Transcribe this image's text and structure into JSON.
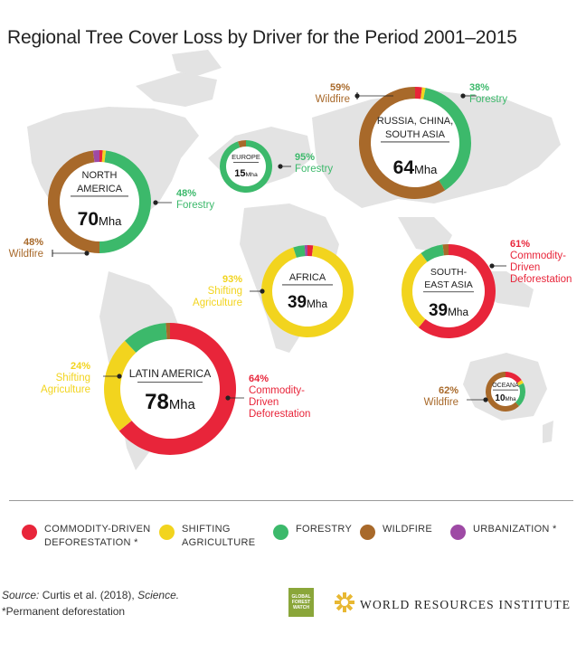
{
  "title": "Regional Tree Cover Loss by Driver for the Period 2001–2015",
  "colors": {
    "commodity": "#e8253a",
    "shifting": "#f2d41e",
    "forestry": "#3cb96b",
    "wildfire": "#a8692a",
    "urbanization": "#9e4aa5",
    "map": "#e3e3e3"
  },
  "chart_data": {
    "type": "donut",
    "drivers": [
      {
        "key": "commodity",
        "label": "COMMODITY-DRIVEN\nDEFORESTATION *"
      },
      {
        "key": "shifting",
        "label": "SHIFTING\nAGRICULTURE"
      },
      {
        "key": "forestry",
        "label": "FORESTRY"
      },
      {
        "key": "wildfire",
        "label": "WILDFIRE"
      },
      {
        "key": "urbanization",
        "label": "URBANIZATION *"
      }
    ],
    "regions": [
      {
        "name": "North America",
        "name_lines": [
          "NORTH",
          "AMERICA"
        ],
        "total": "70",
        "unit": "Mha",
        "slices": [
          {
            "driver": "commodity",
            "value": 1
          },
          {
            "driver": "shifting",
            "value": 1
          },
          {
            "driver": "forestry",
            "value": 48
          },
          {
            "driver": "wildfire",
            "value": 48
          },
          {
            "driver": "urbanization",
            "value": 2
          }
        ],
        "callouts": [
          {
            "pct": "48%",
            "lines": [
              "Forestry"
            ],
            "driver": "forestry"
          },
          {
            "pct": "48%",
            "lines": [
              "Wildfire"
            ],
            "driver": "wildfire"
          }
        ]
      },
      {
        "name": "Europe",
        "name_lines": [
          "EUROPE"
        ],
        "total": "15",
        "unit": "Mha",
        "slices": [
          {
            "driver": "forestry",
            "value": 95
          },
          {
            "driver": "wildfire",
            "value": 5
          }
        ],
        "callouts": [
          {
            "pct": "95%",
            "lines": [
              "Forestry"
            ],
            "driver": "forestry"
          }
        ]
      },
      {
        "name": "Russia, China, South Asia",
        "name_lines": [
          "RUSSIA, CHINA,",
          "SOUTH ASIA"
        ],
        "total": "64",
        "unit": "Mha",
        "slices": [
          {
            "driver": "commodity",
            "value": 2
          },
          {
            "driver": "shifting",
            "value": 1
          },
          {
            "driver": "forestry",
            "value": 38
          },
          {
            "driver": "wildfire",
            "value": 59
          }
        ],
        "callouts": [
          {
            "pct": "59%",
            "lines": [
              "Wildfire"
            ],
            "driver": "wildfire"
          },
          {
            "pct": "38%",
            "lines": [
              "Forestry"
            ],
            "driver": "forestry"
          }
        ]
      },
      {
        "name": "Africa",
        "name_lines": [
          "AFRICA"
        ],
        "total": "39",
        "unit": "Mha",
        "slices": [
          {
            "driver": "commodity",
            "value": 2
          },
          {
            "driver": "shifting",
            "value": 93
          },
          {
            "driver": "forestry",
            "value": 4
          },
          {
            "driver": "urbanization",
            "value": 1
          }
        ],
        "callouts": [
          {
            "pct": "93%",
            "lines": [
              "Shifting",
              "Agriculture"
            ],
            "driver": "shifting"
          }
        ]
      },
      {
        "name": "South-East Asia",
        "name_lines": [
          "SOUTH-",
          "EAST ASIA"
        ],
        "total": "39",
        "unit": "Mha",
        "slices": [
          {
            "driver": "commodity",
            "value": 61
          },
          {
            "driver": "shifting",
            "value": 29
          },
          {
            "driver": "forestry",
            "value": 8
          },
          {
            "driver": "wildfire",
            "value": 2
          }
        ],
        "callouts": [
          {
            "pct": "61%",
            "lines": [
              "Commodity-",
              "Driven",
              "Deforestation"
            ],
            "driver": "commodity"
          }
        ]
      },
      {
        "name": "Latin America",
        "name_lines": [
          "LATIN AMERICA"
        ],
        "total": "78",
        "unit": "Mha",
        "slices": [
          {
            "driver": "commodity",
            "value": 64
          },
          {
            "driver": "shifting",
            "value": 24
          },
          {
            "driver": "forestry",
            "value": 11
          },
          {
            "driver": "wildfire",
            "value": 1
          }
        ],
        "callouts": [
          {
            "pct": "24%",
            "lines": [
              "Shifting",
              "Agriculture"
            ],
            "driver": "shifting"
          },
          {
            "pct": "64%",
            "lines": [
              "Commodity-",
              "Driven",
              "Deforestation"
            ],
            "driver": "commodity"
          }
        ]
      },
      {
        "name": "Oceania",
        "name_lines": [
          "OCEANA"
        ],
        "total": "10",
        "unit": "Mha",
        "slices": [
          {
            "driver": "commodity",
            "value": 15
          },
          {
            "driver": "shifting",
            "value": 3
          },
          {
            "driver": "forestry",
            "value": 20
          },
          {
            "driver": "wildfire",
            "value": 62
          }
        ],
        "callouts": [
          {
            "pct": "62%",
            "lines": [
              "Wildfire"
            ],
            "driver": "wildfire"
          }
        ]
      }
    ]
  },
  "source": {
    "prefix": "Source:",
    "text": " Curtis et al. (2018), ",
    "journal": "Science."
  },
  "footnote": "*Permanent deforestation",
  "logos": {
    "gfw": "GLOBAL\nFOREST\nWATCH",
    "wri": "WORLD RESOURCES INSTITUTE"
  }
}
